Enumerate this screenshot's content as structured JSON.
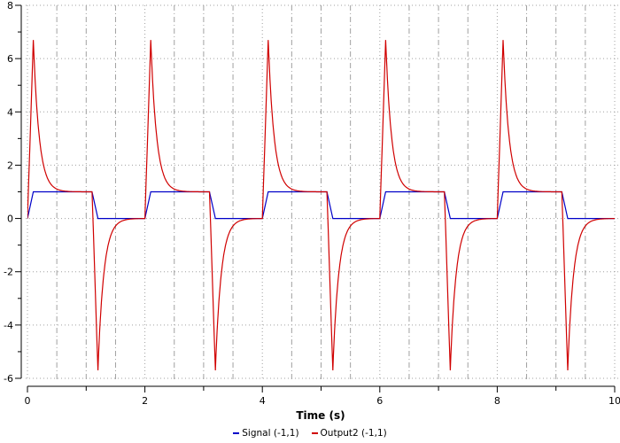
{
  "chart_data": {
    "type": "line",
    "title": "",
    "xlabel": "Time (s)",
    "ylabel": "",
    "xlim": [
      0,
      10
    ],
    "ylim": [
      -6,
      8
    ],
    "x_ticks": [
      0,
      2,
      4,
      6,
      8,
      10
    ],
    "x_tick_labels": [
      "0",
      "2",
      "4",
      "6",
      "8",
      "10"
    ],
    "x_minor_step": 0.5,
    "y_ticks": [
      -6,
      -4,
      -2,
      0,
      2,
      4,
      6,
      8
    ],
    "y_tick_labels": [
      "-6",
      "-4",
      "-2",
      "0",
      "2",
      "4",
      "6",
      "8"
    ],
    "y_minor_step": 0.5,
    "grid": true,
    "legend_position": "bottom",
    "series": [
      {
        "name": "Signal (-1,1)",
        "color": "#0000c8",
        "description": "Periodic trapezoidal pulse, period 2 s: rise 0→1 over 0.1 s, high until ~1.1 s, fall to 0 by ~1.2 s, low until 2 s",
        "x": [
          0,
          0.1,
          1.1,
          1.2,
          2.0,
          2.1,
          3.1,
          3.2,
          4.0,
          4.1,
          5.1,
          5.2,
          6.0,
          6.1,
          7.1,
          7.2,
          8.0,
          8.1,
          9.1,
          9.2,
          10.0
        ],
        "y": [
          0,
          1,
          1,
          0,
          0,
          1,
          1,
          0,
          0,
          1,
          1,
          0,
          0,
          1,
          1,
          0,
          0,
          1,
          1,
          0,
          0
        ]
      },
      {
        "name": "Output2 (-1,1)",
        "color": "#d00000",
        "description": "Derivative-like response: spikes to ~+6.7 at each rising edge and decays to 1; spikes to ~-5.7 at each falling edge and decays to 0",
        "peak_positive": 6.7,
        "peak_negative": -5.7,
        "x": [
          0,
          0.1,
          0.2,
          0.3,
          0.4,
          0.5,
          0.6,
          0.8,
          1.0,
          1.1,
          1.2,
          1.3,
          1.4,
          1.5,
          1.6,
          1.8,
          2.0,
          2.1,
          2.2,
          2.3,
          2.4,
          2.5,
          2.6,
          2.8,
          3.0,
          3.1,
          3.2,
          3.3,
          3.4,
          3.5,
          3.6,
          3.8,
          4.0,
          4.1,
          4.2,
          4.3,
          4.4,
          4.5,
          4.6,
          4.8,
          5.0,
          5.1,
          5.2,
          5.3,
          5.4,
          5.5,
          5.6,
          5.8,
          6.0,
          6.1,
          6.2,
          6.3,
          6.4,
          6.5,
          6.6,
          6.8,
          7.0,
          7.1,
          7.2,
          7.3,
          7.4,
          7.5,
          7.6,
          7.8,
          8.0,
          8.1,
          8.2,
          8.3,
          8.4,
          8.5,
          8.6,
          8.8,
          9.0,
          9.1,
          9.2,
          9.3,
          9.4,
          9.5,
          9.6,
          9.8,
          10.0
        ],
        "y": [
          0,
          6.7,
          3.6,
          2.1,
          1.5,
          1.25,
          1.12,
          1.03,
          1.0,
          1.0,
          -5.7,
          -2.7,
          -1.3,
          -0.6,
          -0.3,
          -0.07,
          0,
          6.7,
          3.6,
          2.1,
          1.5,
          1.25,
          1.12,
          1.03,
          1.0,
          1.0,
          -5.7,
          -2.7,
          -1.3,
          -0.6,
          -0.3,
          -0.07,
          0,
          6.7,
          3.6,
          2.1,
          1.5,
          1.25,
          1.12,
          1.03,
          1.0,
          1.0,
          -5.7,
          -2.7,
          -1.3,
          -0.6,
          -0.3,
          -0.07,
          0,
          6.7,
          3.6,
          2.1,
          1.5,
          1.25,
          1.12,
          1.03,
          1.0,
          1.0,
          -5.7,
          -2.7,
          -1.3,
          -0.6,
          -0.3,
          -0.07,
          0,
          6.7,
          3.6,
          2.1,
          1.5,
          1.25,
          1.12,
          1.03,
          1.0,
          1.0,
          -5.7,
          -2.7,
          -1.3,
          -0.6,
          -0.3,
          -0.07,
          0
        ]
      }
    ]
  },
  "legend": {
    "items": [
      {
        "label": "Signal (-1,1)",
        "color": "#0000c8"
      },
      {
        "label": "Output2 (-1,1)",
        "color": "#d00000"
      }
    ]
  },
  "colors": {
    "grid": "#a0a0a0",
    "axis": "#000000",
    "background": "#ffffff"
  }
}
